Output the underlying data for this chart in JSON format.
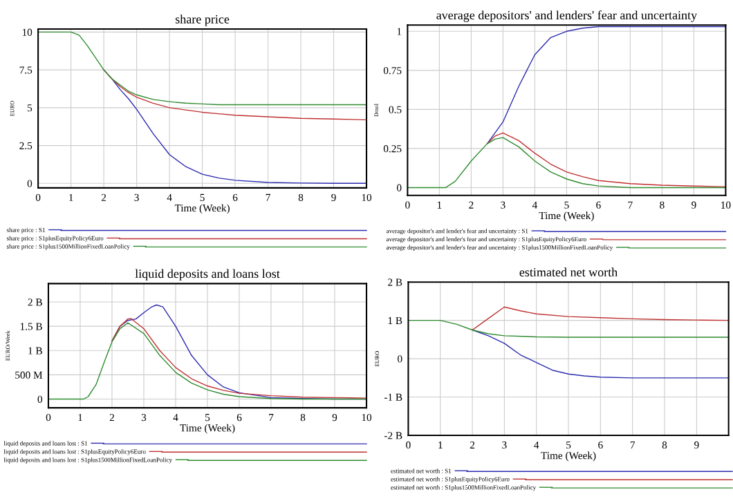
{
  "chart_data": [
    {
      "type": "line",
      "title": "share price",
      "xlabel": "Time (Week)",
      "ylabel": "EURO",
      "xlim": [
        0,
        10
      ],
      "xticks": [
        0,
        1,
        2,
        3,
        4,
        5,
        6,
        7,
        8,
        9,
        10
      ],
      "ylim": [
        -0.3,
        10.2
      ],
      "yticks": [
        0,
        2.5,
        5,
        7.5,
        10
      ],
      "grid": true,
      "legend": "bottom",
      "series": [
        {
          "name": "share price : S1",
          "color": "#2b2bb0",
          "x": [
            2,
            2.25,
            2.5,
            2.75,
            3,
            3.5,
            4,
            4.5,
            5,
            5.5,
            6,
            7,
            8,
            9,
            10
          ],
          "values": [
            7.5,
            6.9,
            6.2,
            5.6,
            4.9,
            3.3,
            1.9,
            1.1,
            0.6,
            0.35,
            0.2,
            0.06,
            0.02,
            0,
            0
          ]
        },
        {
          "name": "share price : S1plusEquityPolicy6Euro",
          "color": "#c03030",
          "x": [
            2,
            2.25,
            2.5,
            2.75,
            3,
            3.5,
            4,
            4.5,
            5,
            5.5,
            6,
            7,
            8,
            9,
            10
          ],
          "values": [
            7.5,
            6.9,
            6.4,
            6.0,
            5.7,
            5.3,
            5.0,
            4.85,
            4.7,
            4.6,
            4.5,
            4.4,
            4.3,
            4.25,
            4.2
          ]
        },
        {
          "name": "share price : S1plus1500MillionFixedLoanPolicy",
          "color": "#2e8b2e",
          "x": [
            0,
            0.5,
            1,
            1.25,
            1.5,
            1.75,
            2,
            2.25,
            2.5,
            2.75,
            3,
            3.5,
            4,
            4.5,
            5,
            5.5,
            6,
            7,
            8,
            9,
            10
          ],
          "values": [
            10,
            10,
            10,
            9.8,
            9.1,
            8.3,
            7.5,
            6.9,
            6.5,
            6.1,
            5.85,
            5.55,
            5.4,
            5.3,
            5.25,
            5.2,
            5.2,
            5.2,
            5.2,
            5.2,
            5.2
          ]
        }
      ]
    },
    {
      "type": "line",
      "title": "average depositors' and lenders' fear and uncertainty",
      "xlabel": "Time (Week)",
      "ylabel": "Dmnl",
      "xlim": [
        0,
        10
      ],
      "xticks": [
        0,
        1,
        2,
        3,
        4,
        5,
        6,
        7,
        8,
        9,
        10
      ],
      "ylim": [
        -0.05,
        1.04
      ],
      "yticks": [
        0,
        0.25,
        0.5,
        0.75,
        1
      ],
      "grid": true,
      "legend": "bottom",
      "series": [
        {
          "name": "average depositor's and lender's fear and uncertainty : S1",
          "color": "#2b2bb0",
          "x": [
            2.5,
            3,
            3.5,
            4,
            4.5,
            5,
            5.5,
            6,
            7,
            8,
            9,
            10
          ],
          "values": [
            0.28,
            0.42,
            0.65,
            0.85,
            0.96,
            1.0,
            1.02,
            1.03,
            1.03,
            1.03,
            1.03,
            1.03
          ]
        },
        {
          "name": "average depositor's and lender's fear and uncertainty : S1plusEquityPolicy6Euro",
          "color": "#c03030",
          "x": [
            2.5,
            2.75,
            3,
            3.5,
            4,
            4.5,
            5,
            5.5,
            6,
            7,
            8,
            9,
            10
          ],
          "values": [
            0.28,
            0.33,
            0.35,
            0.3,
            0.22,
            0.15,
            0.1,
            0.07,
            0.045,
            0.025,
            0.015,
            0.01,
            0.005
          ]
        },
        {
          "name": "average depositor's and lender's fear and uncertainty : S1plus1500MillionFixedLoanPolicy",
          "color": "#2e8b2e",
          "x": [
            0,
            1,
            1.2,
            1.5,
            2,
            2.5,
            2.75,
            3,
            3.5,
            4,
            4.5,
            5,
            5.5,
            6,
            7,
            8,
            9,
            10
          ],
          "values": [
            0,
            0,
            0,
            0.04,
            0.17,
            0.28,
            0.31,
            0.32,
            0.26,
            0.17,
            0.1,
            0.055,
            0.025,
            0.01,
            0,
            0,
            0,
            0
          ]
        }
      ]
    },
    {
      "type": "line",
      "title": "liquid deposits and loans lost",
      "xlabel": "Time (Week)",
      "ylabel": "EURO/Week",
      "xlim": [
        0,
        10
      ],
      "xticks": [
        0,
        1,
        2,
        3,
        4,
        5,
        6,
        7,
        8,
        9,
        10
      ],
      "ylim": [
        -180000000,
        2380000000
      ],
      "yticks": [
        {
          "value": 0,
          "label": "0"
        },
        {
          "value": 500000000,
          "label": "500 M"
        },
        {
          "value": 1000000000,
          "label": "1 B"
        },
        {
          "value": 1500000000,
          "label": "1.5 B"
        },
        {
          "value": 2000000000,
          "label": "2 B"
        }
      ],
      "grid": true,
      "legend": "bottom",
      "series": [
        {
          "name": "liquid deposits and loans lost : S1",
          "color": "#2b2bb0",
          "x": [
            2,
            2.25,
            2.5,
            2.75,
            3,
            3.25,
            3.4,
            3.6,
            4,
            4.5,
            5,
            5.5,
            6,
            7,
            8,
            9,
            10
          ],
          "values": [
            1200000000,
            1500000000,
            1620000000,
            1650000000,
            1780000000,
            1900000000,
            1940000000,
            1900000000,
            1500000000,
            900000000,
            500000000,
            250000000,
            130000000,
            30000000,
            10000000,
            0,
            0
          ]
        },
        {
          "name": "liquid deposits and loans lost : S1plusEquityPolicy6Euro",
          "color": "#c03030",
          "x": [
            2,
            2.25,
            2.5,
            2.6,
            3,
            3.5,
            4,
            4.5,
            5,
            5.5,
            6,
            7,
            8,
            9,
            10
          ],
          "values": [
            1200000000,
            1500000000,
            1650000000,
            1660000000,
            1450000000,
            1000000000,
            650000000,
            420000000,
            270000000,
            180000000,
            120000000,
            70000000,
            40000000,
            30000000,
            20000000
          ]
        },
        {
          "name": "liquid deposits and loans lost : S1plus1500MillionFixedLoanPolicy",
          "color": "#2e8b2e",
          "x": [
            0,
            1,
            1.1,
            1.25,
            1.5,
            1.75,
            2,
            2.25,
            2.5,
            3,
            3.5,
            4,
            4.5,
            5,
            5.5,
            6,
            7,
            8,
            9,
            10
          ],
          "values": [
            0,
            0,
            0,
            50000000,
            300000000,
            750000000,
            1180000000,
            1450000000,
            1570000000,
            1350000000,
            900000000,
            550000000,
            330000000,
            190000000,
            100000000,
            50000000,
            10000000,
            0,
            0,
            0
          ]
        }
      ]
    },
    {
      "type": "line",
      "title": "estimated net worth",
      "xlabel": "Time (Week)",
      "ylabel": "EURO",
      "xlim": [
        0,
        10
      ],
      "xticks": [
        0,
        1,
        2,
        3,
        4,
        5,
        6,
        7,
        8,
        9
      ],
      "ylim": [
        -2000000000,
        2000000000
      ],
      "yticks": [
        {
          "value": -2000000000,
          "label": "-2 B"
        },
        {
          "value": -1000000000,
          "label": "-1 B"
        },
        {
          "value": 0,
          "label": "0"
        },
        {
          "value": 1000000000,
          "label": "1 B"
        },
        {
          "value": 2000000000,
          "label": "2 B"
        }
      ],
      "grid": true,
      "legend": "bottom",
      "series": [
        {
          "name": "estimated net worth : S1",
          "color": "#2b2bb0",
          "x": [
            2,
            2.5,
            3,
            3.5,
            4,
            4.5,
            5,
            5.5,
            6,
            7,
            8,
            9,
            10
          ],
          "values": [
            750000000,
            600000000,
            400000000,
            100000000,
            -100000000,
            -300000000,
            -400000000,
            -450000000,
            -480000000,
            -500000000,
            -500000000,
            -500000000,
            -500000000
          ]
        },
        {
          "name": "estimated net worth : S1plusEquityPolicy6Euro",
          "color": "#c03030",
          "x": [
            2,
            2.5,
            3,
            3.5,
            4,
            5,
            6,
            7,
            8,
            9,
            10
          ],
          "values": [
            750000000,
            1050000000,
            1350000000,
            1250000000,
            1170000000,
            1100000000,
            1070000000,
            1040000000,
            1020000000,
            1010000000,
            1000000000
          ]
        },
        {
          "name": "estimated net worth : S1plus1500MillionFixedLoanPolicy",
          "color": "#2e8b2e",
          "x": [
            0,
            1,
            1.5,
            2,
            2.5,
            3,
            4,
            5,
            6,
            7,
            8,
            9,
            10
          ],
          "values": [
            1000000000,
            1000000000,
            900000000,
            750000000,
            650000000,
            600000000,
            570000000,
            560000000,
            560000000,
            560000000,
            560000000,
            560000000,
            560000000
          ]
        }
      ]
    }
  ]
}
